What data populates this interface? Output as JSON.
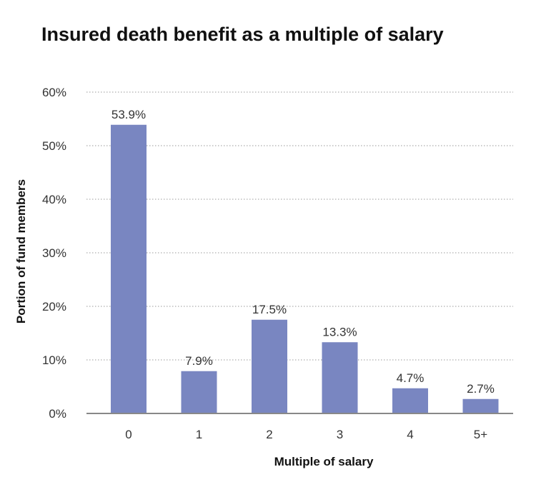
{
  "chart_data": {
    "type": "bar",
    "title": "Insured death benefit as a multiple of salary",
    "xlabel": "Multiple of salary",
    "ylabel": "Portion of fund members",
    "categories": [
      "0",
      "1",
      "2",
      "3",
      "4",
      "5+"
    ],
    "values": [
      53.9,
      7.9,
      17.5,
      13.3,
      4.7,
      2.7
    ],
    "data_labels": [
      "53.9%",
      "7.9%",
      "17.5%",
      "13.3%",
      "4.7%",
      "2.7%"
    ],
    "ylim": [
      0,
      60
    ],
    "yticks": [
      0,
      10,
      20,
      30,
      40,
      50,
      60
    ],
    "ytick_labels": [
      "0%",
      "10%",
      "20%",
      "30%",
      "40%",
      "50%",
      "60%"
    ],
    "grid": true,
    "grid_style": "dotted",
    "bar_color": "#7986c1",
    "axis_color": "#888888",
    "grid_color": "#999999"
  }
}
